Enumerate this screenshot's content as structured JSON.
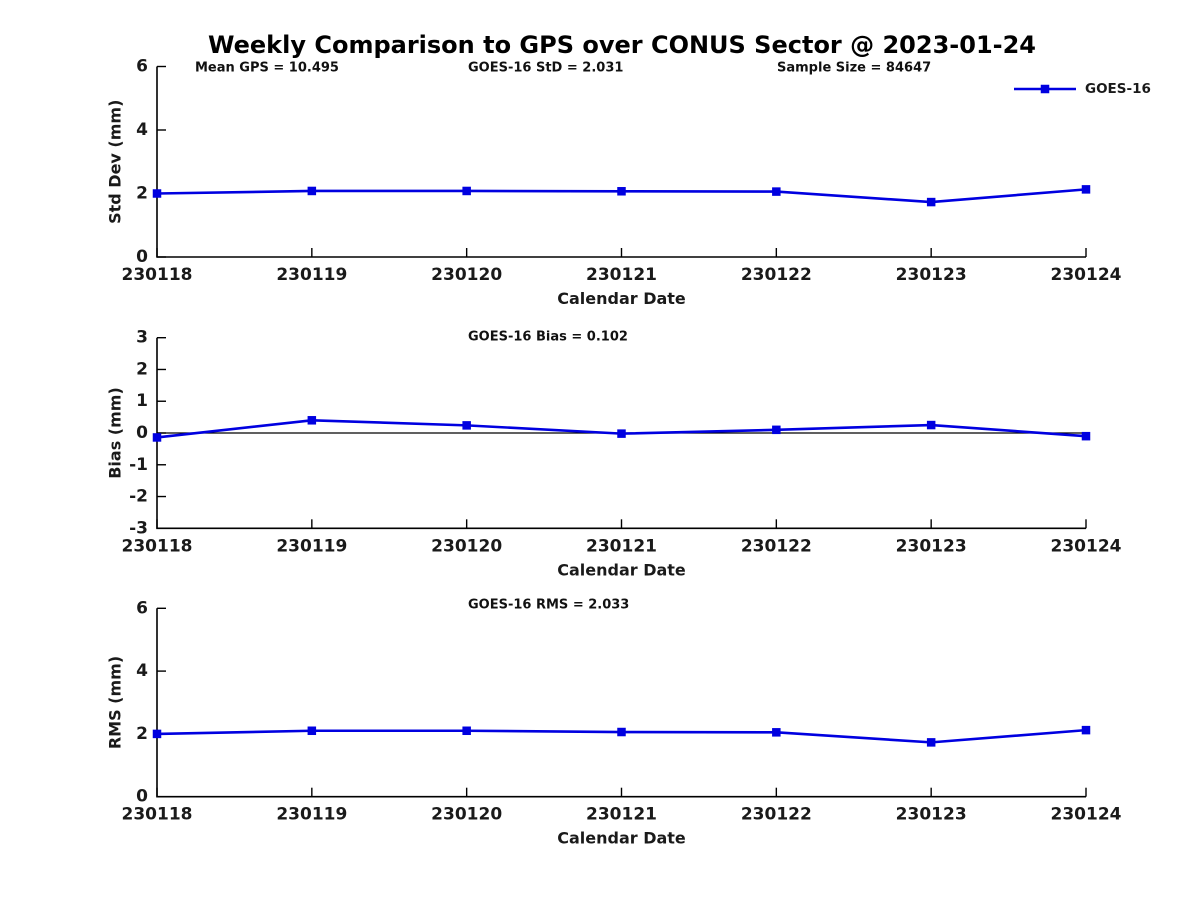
{
  "title": "Weekly Comparison to GPS over CONUS Sector @ 2023-01-24",
  "legend": {
    "label": "GOES-16"
  },
  "colors": {
    "series": "#0000e0",
    "axis": "#000000",
    "zero_line": "#000000",
    "text": "#1a1a1a",
    "background": "#ffffff"
  },
  "chart_data": [
    {
      "type": "line",
      "name": "std-dev",
      "ylabel": "Std Dev (mm)",
      "xlabel": "Calendar Date",
      "ylim": [
        0,
        6
      ],
      "yticks": [
        0,
        2,
        4,
        6
      ],
      "grid": false,
      "zero_line": false,
      "legend_position": "top-right",
      "categories": [
        "230118",
        "230119",
        "230120",
        "230121",
        "230122",
        "230123",
        "230124"
      ],
      "series": [
        {
          "name": "GOES-16",
          "values": [
            2.0,
            2.08,
            2.08,
            2.07,
            2.06,
            1.73,
            2.13
          ]
        }
      ],
      "annotations": [
        "Mean GPS = 10.495",
        "GOES-16 StD = 2.031",
        "Sample Size = 84647"
      ]
    },
    {
      "type": "line",
      "name": "bias",
      "ylabel": "Bias (mm)",
      "xlabel": "Calendar Date",
      "ylim": [
        -3,
        3
      ],
      "yticks": [
        -3,
        -2,
        -1,
        0,
        1,
        2,
        3
      ],
      "grid": false,
      "zero_line": true,
      "categories": [
        "230118",
        "230119",
        "230120",
        "230121",
        "230122",
        "230123",
        "230124"
      ],
      "series": [
        {
          "name": "GOES-16",
          "values": [
            -0.14,
            0.4,
            0.24,
            -0.02,
            0.1,
            0.25,
            -0.1
          ]
        }
      ],
      "annotations": [
        "GOES-16 Bias  = 0.102"
      ]
    },
    {
      "type": "line",
      "name": "rms",
      "ylabel": "RMS (mm)",
      "xlabel": "Calendar Date",
      "ylim": [
        0,
        6
      ],
      "yticks": [
        0,
        2,
        4,
        6
      ],
      "grid": false,
      "zero_line": false,
      "categories": [
        "230118",
        "230119",
        "230120",
        "230121",
        "230122",
        "230123",
        "230124"
      ],
      "series": [
        {
          "name": "GOES-16",
          "values": [
            2.0,
            2.1,
            2.1,
            2.06,
            2.05,
            1.73,
            2.12
          ]
        }
      ],
      "annotations": [
        "GOES-16 RMS = 2.033"
      ]
    }
  ]
}
